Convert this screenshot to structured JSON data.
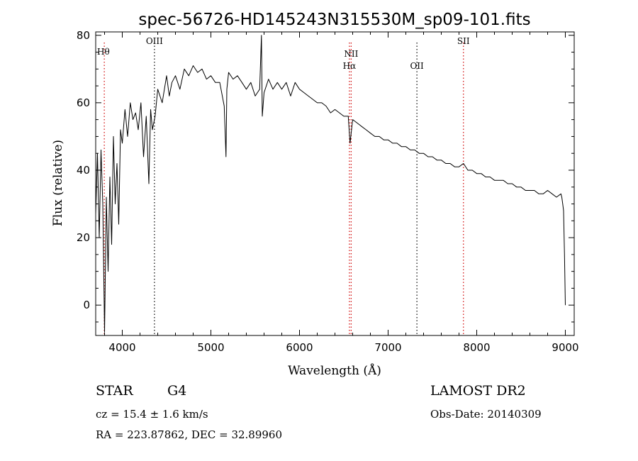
{
  "chart_data": {
    "type": "line",
    "title": "spec-56726-HD145243N315530M_sp09-101.fits",
    "xlabel": "Wavelength (Å)",
    "ylabel": "Flux (relative)",
    "xlim": [
      3700,
      9100
    ],
    "ylim": [
      -9,
      81
    ],
    "x_ticks": [
      4000,
      5000,
      6000,
      7000,
      8000,
      9000
    ],
    "y_ticks": [
      0,
      20,
      40,
      60,
      80
    ],
    "x_tick_labels": [
      "4000",
      "5000",
      "6000",
      "7000",
      "8000",
      "9000"
    ],
    "y_tick_labels": [
      "0",
      "20",
      "40",
      "60",
      "80"
    ],
    "grid": false,
    "lines": [
      {
        "label": "Hθ",
        "x": 3797,
        "color": "#d00000"
      },
      {
        "label": "OIII",
        "x": 4363,
        "color": "#000000"
      },
      {
        "label": "NII",
        "x": 6583,
        "color": "#d00000"
      },
      {
        "label": "Hα",
        "x": 6563,
        "color": "#d00000"
      },
      {
        "label": "OII",
        "x": 7325,
        "color": "#000000"
      },
      {
        "label": "SII",
        "x": 7850,
        "color": "#d00000"
      }
    ],
    "series": [
      {
        "x": [
          3700,
          3720,
          3740,
          3760,
          3780,
          3800,
          3820,
          3840,
          3860,
          3880,
          3900,
          3920,
          3940,
          3960,
          3980,
          4000,
          4030,
          4060,
          4090,
          4120,
          4150,
          4180,
          4210,
          4240,
          4270,
          4300,
          4320,
          4340,
          4370,
          4400,
          4450,
          4500,
          4530,
          4560,
          4600,
          4650,
          4700,
          4750,
          4800,
          4850,
          4900,
          4950,
          5000,
          5050,
          5100,
          5150,
          5170,
          5180,
          5200,
          5250,
          5300,
          5350,
          5400,
          5450,
          5500,
          5550,
          5570,
          5580,
          5600,
          5650,
          5700,
          5750,
          5800,
          5850,
          5900,
          5950,
          6000,
          6050,
          6100,
          6150,
          6200,
          6250,
          6300,
          6350,
          6400,
          6450,
          6500,
          6550,
          6560,
          6570,
          6600,
          6650,
          6700,
          6750,
          6800,
          6850,
          6900,
          6950,
          7000,
          7050,
          7100,
          7150,
          7200,
          7250,
          7300,
          7350,
          7400,
          7450,
          7500,
          7550,
          7600,
          7650,
          7700,
          7750,
          7800,
          7850,
          7900,
          7950,
          8000,
          8050,
          8100,
          8150,
          8200,
          8250,
          8300,
          8350,
          8400,
          8450,
          8500,
          8550,
          8600,
          8650,
          8700,
          8750,
          8800,
          8850,
          8900,
          8950,
          8960,
          8970,
          8980,
          8990,
          9000
        ],
        "y": [
          27,
          45,
          20,
          46,
          30,
          -8,
          32,
          10,
          38,
          18,
          50,
          30,
          42,
          24,
          52,
          48,
          58,
          50,
          60,
          55,
          57,
          52,
          60,
          44,
          56,
          36,
          58,
          52,
          56,
          64,
          60,
          68,
          62,
          66,
          68,
          64,
          70,
          68,
          71,
          69,
          70,
          67,
          68,
          66,
          66,
          59,
          44,
          64,
          69,
          67,
          68,
          66,
          64,
          66,
          62,
          64,
          80,
          56,
          63,
          67,
          64,
          66,
          64,
          66,
          62,
          66,
          64,
          63,
          62,
          61,
          60,
          60,
          59,
          57,
          58,
          57,
          56,
          56,
          52,
          48,
          55,
          54,
          53,
          52,
          51,
          50,
          50,
          49,
          49,
          48,
          48,
          47,
          47,
          46,
          46,
          45,
          45,
          44,
          44,
          43,
          43,
          42,
          42,
          41,
          41,
          42,
          40,
          40,
          39,
          39,
          38,
          38,
          37,
          37,
          37,
          36,
          36,
          35,
          35,
          34,
          34,
          34,
          33,
          33,
          34,
          33,
          32,
          33,
          32,
          30,
          28,
          15,
          0
        ]
      }
    ]
  },
  "info": {
    "object_class": "STAR",
    "subclass": "G4",
    "survey": "LAMOST DR2",
    "redshift": "cz = 15.4 ± 1.6 km/s",
    "obs_date": "Obs-Date: 20140309",
    "coords": "RA = 223.87862, DEC =  32.89960"
  }
}
